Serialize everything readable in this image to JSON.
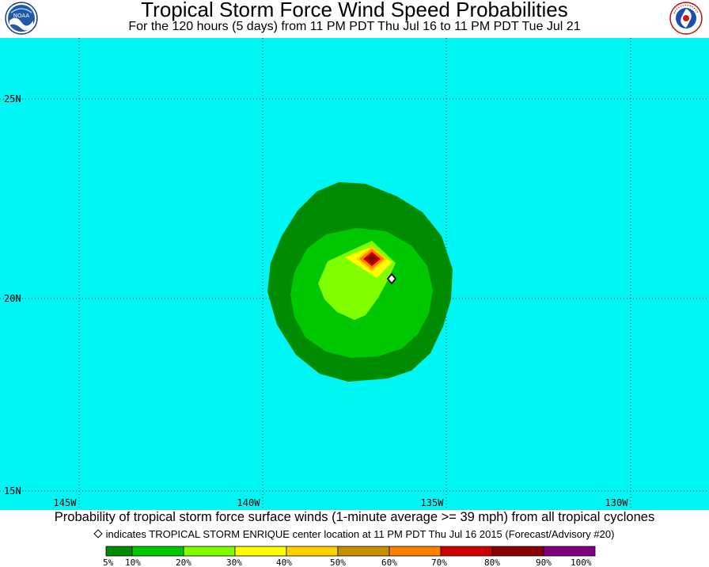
{
  "header": {
    "title": "Tropical Storm Force Wind Speed Probabilities",
    "subtitle": "For the 120 hours (5 days) from 11 PM PDT Thu Jul 16 to 11 PM PDT Tue Jul 21"
  },
  "logos": {
    "left": "noaa-logo",
    "right": "nws-logo",
    "left_text": "NOAA"
  },
  "map": {
    "ocean_color": "#00f5f5",
    "longitude_labels": [
      "145W",
      "140W",
      "135W",
      "130W"
    ],
    "latitude_labels": [
      "25N",
      "20N",
      "15N"
    ],
    "storm_center_marker": "diamond-marker"
  },
  "caption": {
    "main": "Probability of tropical storm force surface winds (1-minute average >= 39 mph) from all tropical cyclones",
    "note": "indicates TROPICAL STORM ENRIQUE center location at 11 PM PDT Thu Jul 16 2015 (Forecast/Advisory #20)"
  },
  "legend": {
    "colors": [
      "#008c00",
      "#00c800",
      "#7fff00",
      "#ffff00",
      "#ffd000",
      "#c89000",
      "#ff8000",
      "#d00000",
      "#8b0000",
      "#800080"
    ],
    "labels": [
      "5%",
      "10%",
      "20%",
      "30%",
      "40%",
      "50%",
      "60%",
      "70%",
      "80%",
      "90%",
      "100%"
    ]
  }
}
